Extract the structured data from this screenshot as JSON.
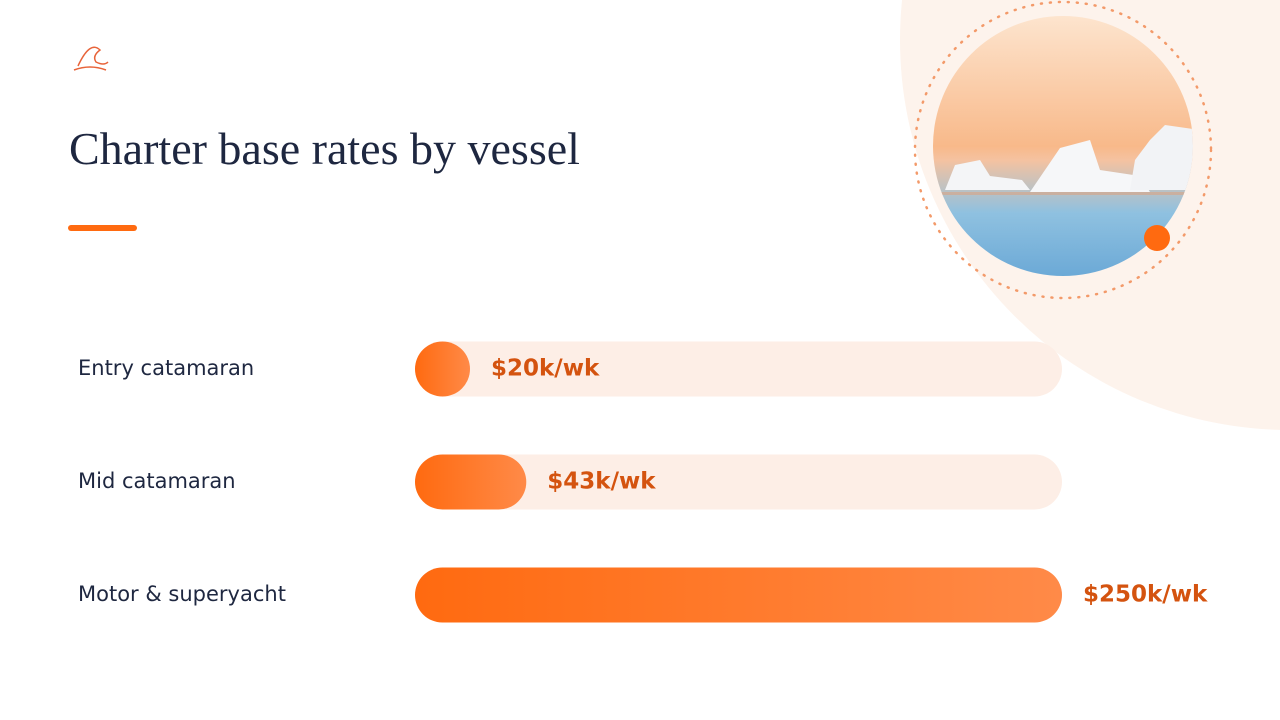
{
  "chart_data": {
    "type": "bar",
    "orientation": "horizontal",
    "title": "Charter base rates by vessel",
    "categories": [
      "Entry catamaran",
      "Mid catamaran",
      "Motor & superyacht"
    ],
    "values": [
      20,
      43,
      250
    ],
    "value_labels": [
      "$20k/wk",
      "$43k/wk",
      "$250k/wk"
    ],
    "color": "#ff6a10",
    "xlim": [
      0,
      250
    ]
  }
}
